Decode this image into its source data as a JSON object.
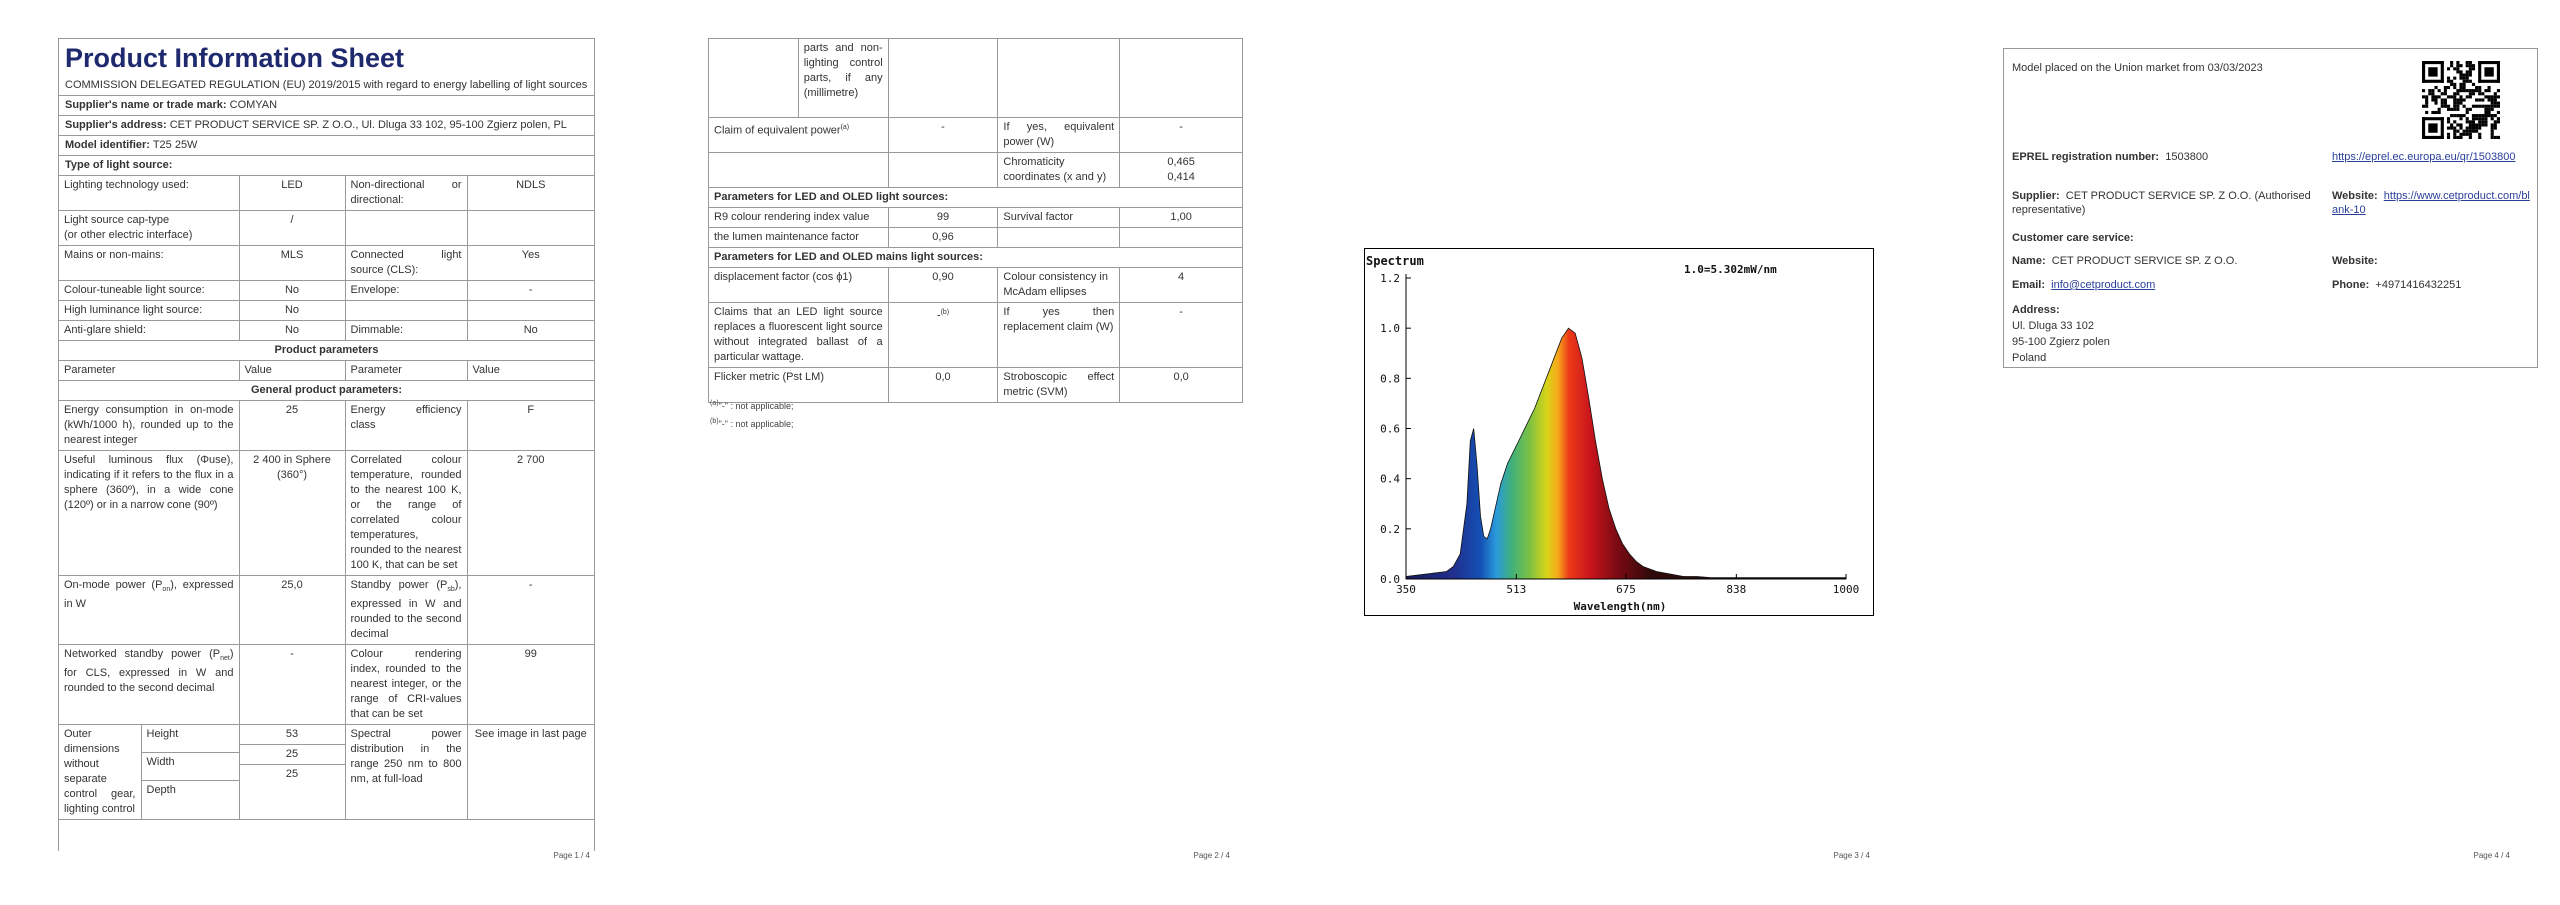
{
  "page1": {
    "title": "Product Information Sheet",
    "regulation": "COMMISSION DELEGATED REGULATION (EU) 2019/2015 with regard to energy labelling of light sources",
    "supplier_name_label": "Supplier's name or trade mark:",
    "supplier_name": "COMYAN",
    "supplier_address_label": "Supplier's address:",
    "supplier_address": "CET PRODUCT SERVICE SP. Z O.O., Ul. Dluga 33 102, 95-100 Zgierz polen, PL",
    "model_label": "Model identifier:",
    "model": "T25 25W",
    "type_label": "Type of light source:",
    "lighting_tech_label": "Lighting technology used:",
    "lighting_tech": "LED",
    "nondirectional_label": "Non-directional or directional:",
    "nondirectional": "NDLS",
    "cap_label_1": "Light source cap-type",
    "cap_label_2": "(or other electric interface)",
    "cap_value": "/",
    "mains_label": "Mains or non-mains:",
    "mains": "MLS",
    "connected_label": "Connected light source (CLS):",
    "connected": "Yes",
    "colour_tuneable_label": "Colour-tuneable light source:",
    "colour_tuneable": "No",
    "envelope_label": "Envelope:",
    "envelope": "-",
    "high_lum_label": "High luminance light source:",
    "high_lum": "No",
    "anti_glare_label": "Anti-glare shield:",
    "anti_glare": "No",
    "dimmable_label": "Dimmable:",
    "dimmable": "No",
    "product_params": "Product parameters",
    "col_parameter": "Parameter",
    "col_value": "Value",
    "general_params": "General product parameters:",
    "energy_label": "Energy consumption in on-mode (kWh/1000 h), rounded up to the nearest integer",
    "energy": "25",
    "efficiency_label": "Energy efficiency class",
    "efficiency": "F",
    "flux_label": "Useful luminous flux (Φuse), indicating if it refers to the flux in a sphere (360º), in a wide cone (120º) or in a narrow cone (90º)",
    "flux": "2 400 in Sphere (360°)",
    "cct_label": "Correlated colour temperature, rounded to the nearest 100 K, or the range of correlated colour temperatures, rounded to the nearest 100 K, that can be set",
    "cct": "2 700",
    "onmode_label_a": "On-mode power (P",
    "onmode_label_sub": "on",
    "onmode_label_b": "), expressed in W",
    "onmode": "25,0",
    "standby_label_a": "Standby power (P",
    "standby_label_sub": "sb",
    "standby_label_b": "), expressed in W and rounded to the second decimal",
    "standby": "-",
    "net_label_a": "Networked standby power (P",
    "net_label_sub": "net",
    "net_label_b": ") for CLS, expressed in W and rounded to the second decimal",
    "net": "-",
    "cri_label": "Colour rendering index, rounded to the nearest integer, or the range of CRI-values that can be set",
    "cri": "99",
    "outer_label": "Outer dimensions without separate control gear, lighting control",
    "height_label": "Height",
    "height": "53",
    "width_label": "Width",
    "width": "25",
    "depth_label": "Depth",
    "depth": "25",
    "spd_label": "Spectral power distribution in the range 250 nm to 800 nm, at full-load",
    "spd": "See image in last page",
    "page_num": "Page 1 / 4"
  },
  "page2": {
    "cont_label": "parts and non-lighting control parts, if any (millimetre)",
    "equiv_label": "Claim of equivalent power",
    "equiv_sup": "(a)",
    "equiv": "-",
    "ifyes_label": "If yes, equivalent power (W)",
    "ifyes": "-",
    "chroma_label": "Chromaticity coordinates (x and y)",
    "chroma_x": "0,465",
    "chroma_y": "0,414",
    "led_oled_header": "Parameters for LED and OLED light sources:",
    "r9_label": "R9 colour rendering index value",
    "r9": "99",
    "survival_label": "Survival factor",
    "survival": "1,00",
    "lumen_maint_label": "the lumen maintenance factor",
    "lumen_maint": "0,96",
    "led_mains_header": "Parameters for LED and OLED mains light sources:",
    "disp_label": "displacement factor (cos ϕ1)",
    "disp": "0,90",
    "colour_consist_label": "Colour consistency in McAdam ellipses",
    "colour_consist": "4",
    "claims_label": "Claims that an LED light source replaces a fluorescent light source without integrated ballast of a particular wattage.",
    "claims": "-",
    "claims_sup": "(b)",
    "replace_label": "If yes then replacement claim (W)",
    "replace": "-",
    "flicker_label": "Flicker metric (Pst LM)",
    "flicker": "0,0",
    "strobo_label": "Stroboscopic effect metric (SVM)",
    "strobo": "0,0",
    "note_a_sup": "(a)",
    "note_a": "-\" : not applicable;",
    "note_b_sup": "(b)",
    "note_b": "-\" : not applicable;",
    "page_num": "Page 2 / 4"
  },
  "page3": {
    "page_num": "Page 3 / 4"
  },
  "page4": {
    "placed": "Model placed on the Union market from 03/03/2023",
    "eprel_label": "EPREL registration number:",
    "eprel": "1503800",
    "eprel_link": "https://eprel.ec.europa.eu/qr/1503800",
    "supplier_label": "Supplier:",
    "supplier": "CET PRODUCT SERVICE SP. Z O.O. (Authorised representative)",
    "website_label": "Website:",
    "website": "https://www.cetproduct.com/blank-10",
    "customer_label": "Customer care service:",
    "name_label": "Name:",
    "name": "CET PRODUCT SERVICE SP. Z O.O.",
    "website2_label": "Website:",
    "email_label": "Email:",
    "email": "info@cetproduct.com",
    "phone_label": "Phone:",
    "phone": "+4971416432251",
    "address_label": "Address:",
    "address_1": "Ul. Dluga 33 102",
    "address_2": "95-100 Zgierz polen",
    "address_3": "Poland",
    "page_num": "Page 4 / 4"
  },
  "chart_data": {
    "type": "area",
    "title": "Spectrum",
    "annotation": "1.0=5.302mW/nm",
    "xlabel": "Wavelength(nm)",
    "ylabel": "",
    "xlim": [
      350,
      1000
    ],
    "ylim": [
      0,
      1.2
    ],
    "xticks": [
      "350",
      "513",
      "675",
      "838",
      "1000"
    ],
    "yticks": [
      "0.0",
      "0.2",
      "0.4",
      "0.6",
      "0.8",
      "1.0",
      "1.2"
    ],
    "grid": false,
    "series": [
      {
        "x": [
          350,
          380,
          410,
          420,
          430,
          440,
          445,
          450,
          455,
          460,
          465,
          470,
          475,
          480,
          490,
          500,
          520,
          540,
          560,
          580,
          590,
          600,
          610,
          620,
          630,
          640,
          650,
          660,
          670,
          680,
          690,
          700,
          720,
          740,
          760,
          780,
          800,
          850,
          900,
          1000
        ],
        "y": [
          0.01,
          0.02,
          0.03,
          0.05,
          0.1,
          0.3,
          0.55,
          0.6,
          0.45,
          0.25,
          0.17,
          0.16,
          0.2,
          0.26,
          0.38,
          0.46,
          0.57,
          0.68,
          0.82,
          0.96,
          1.0,
          0.98,
          0.88,
          0.72,
          0.55,
          0.4,
          0.28,
          0.2,
          0.14,
          0.1,
          0.07,
          0.05,
          0.03,
          0.02,
          0.01,
          0.01,
          0.005,
          0.005,
          0.005,
          0.005
        ]
      }
    ]
  }
}
